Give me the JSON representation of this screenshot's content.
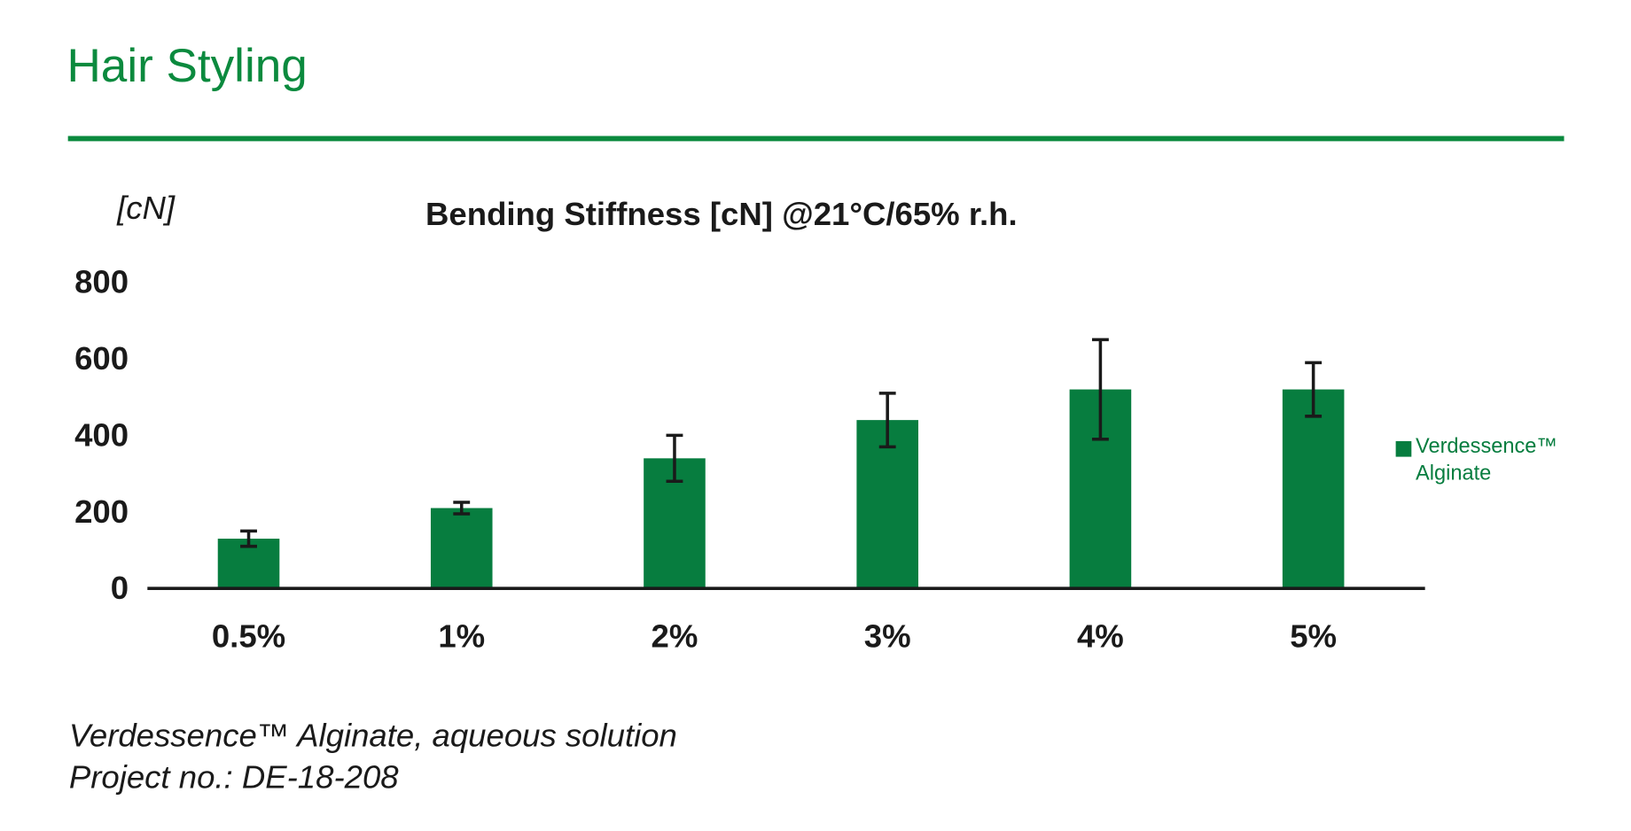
{
  "header": {
    "title": "Hair Styling"
  },
  "chart_data": {
    "type": "bar",
    "title": "Bending Stiffness [cN] @21°C/65% r.h.",
    "y_label": "[cN]",
    "categories": [
      "0.5%",
      "1%",
      "2%",
      "3%",
      "4%",
      "5%"
    ],
    "series": [
      {
        "name": "Verdessence™ Alginate",
        "color": "#077d3f",
        "values": [
          130,
          210,
          340,
          440,
          520,
          520
        ],
        "errors": [
          20,
          15,
          60,
          70,
          130,
          70
        ]
      }
    ],
    "ylim": [
      0,
      800
    ],
    "yticks": [
      0,
      200,
      400,
      600,
      800
    ],
    "grid": false,
    "legend": "right"
  },
  "notes": [
    "Verdessence™ Alginate, aqueous solution",
    "Project no.: DE-18-208"
  ]
}
